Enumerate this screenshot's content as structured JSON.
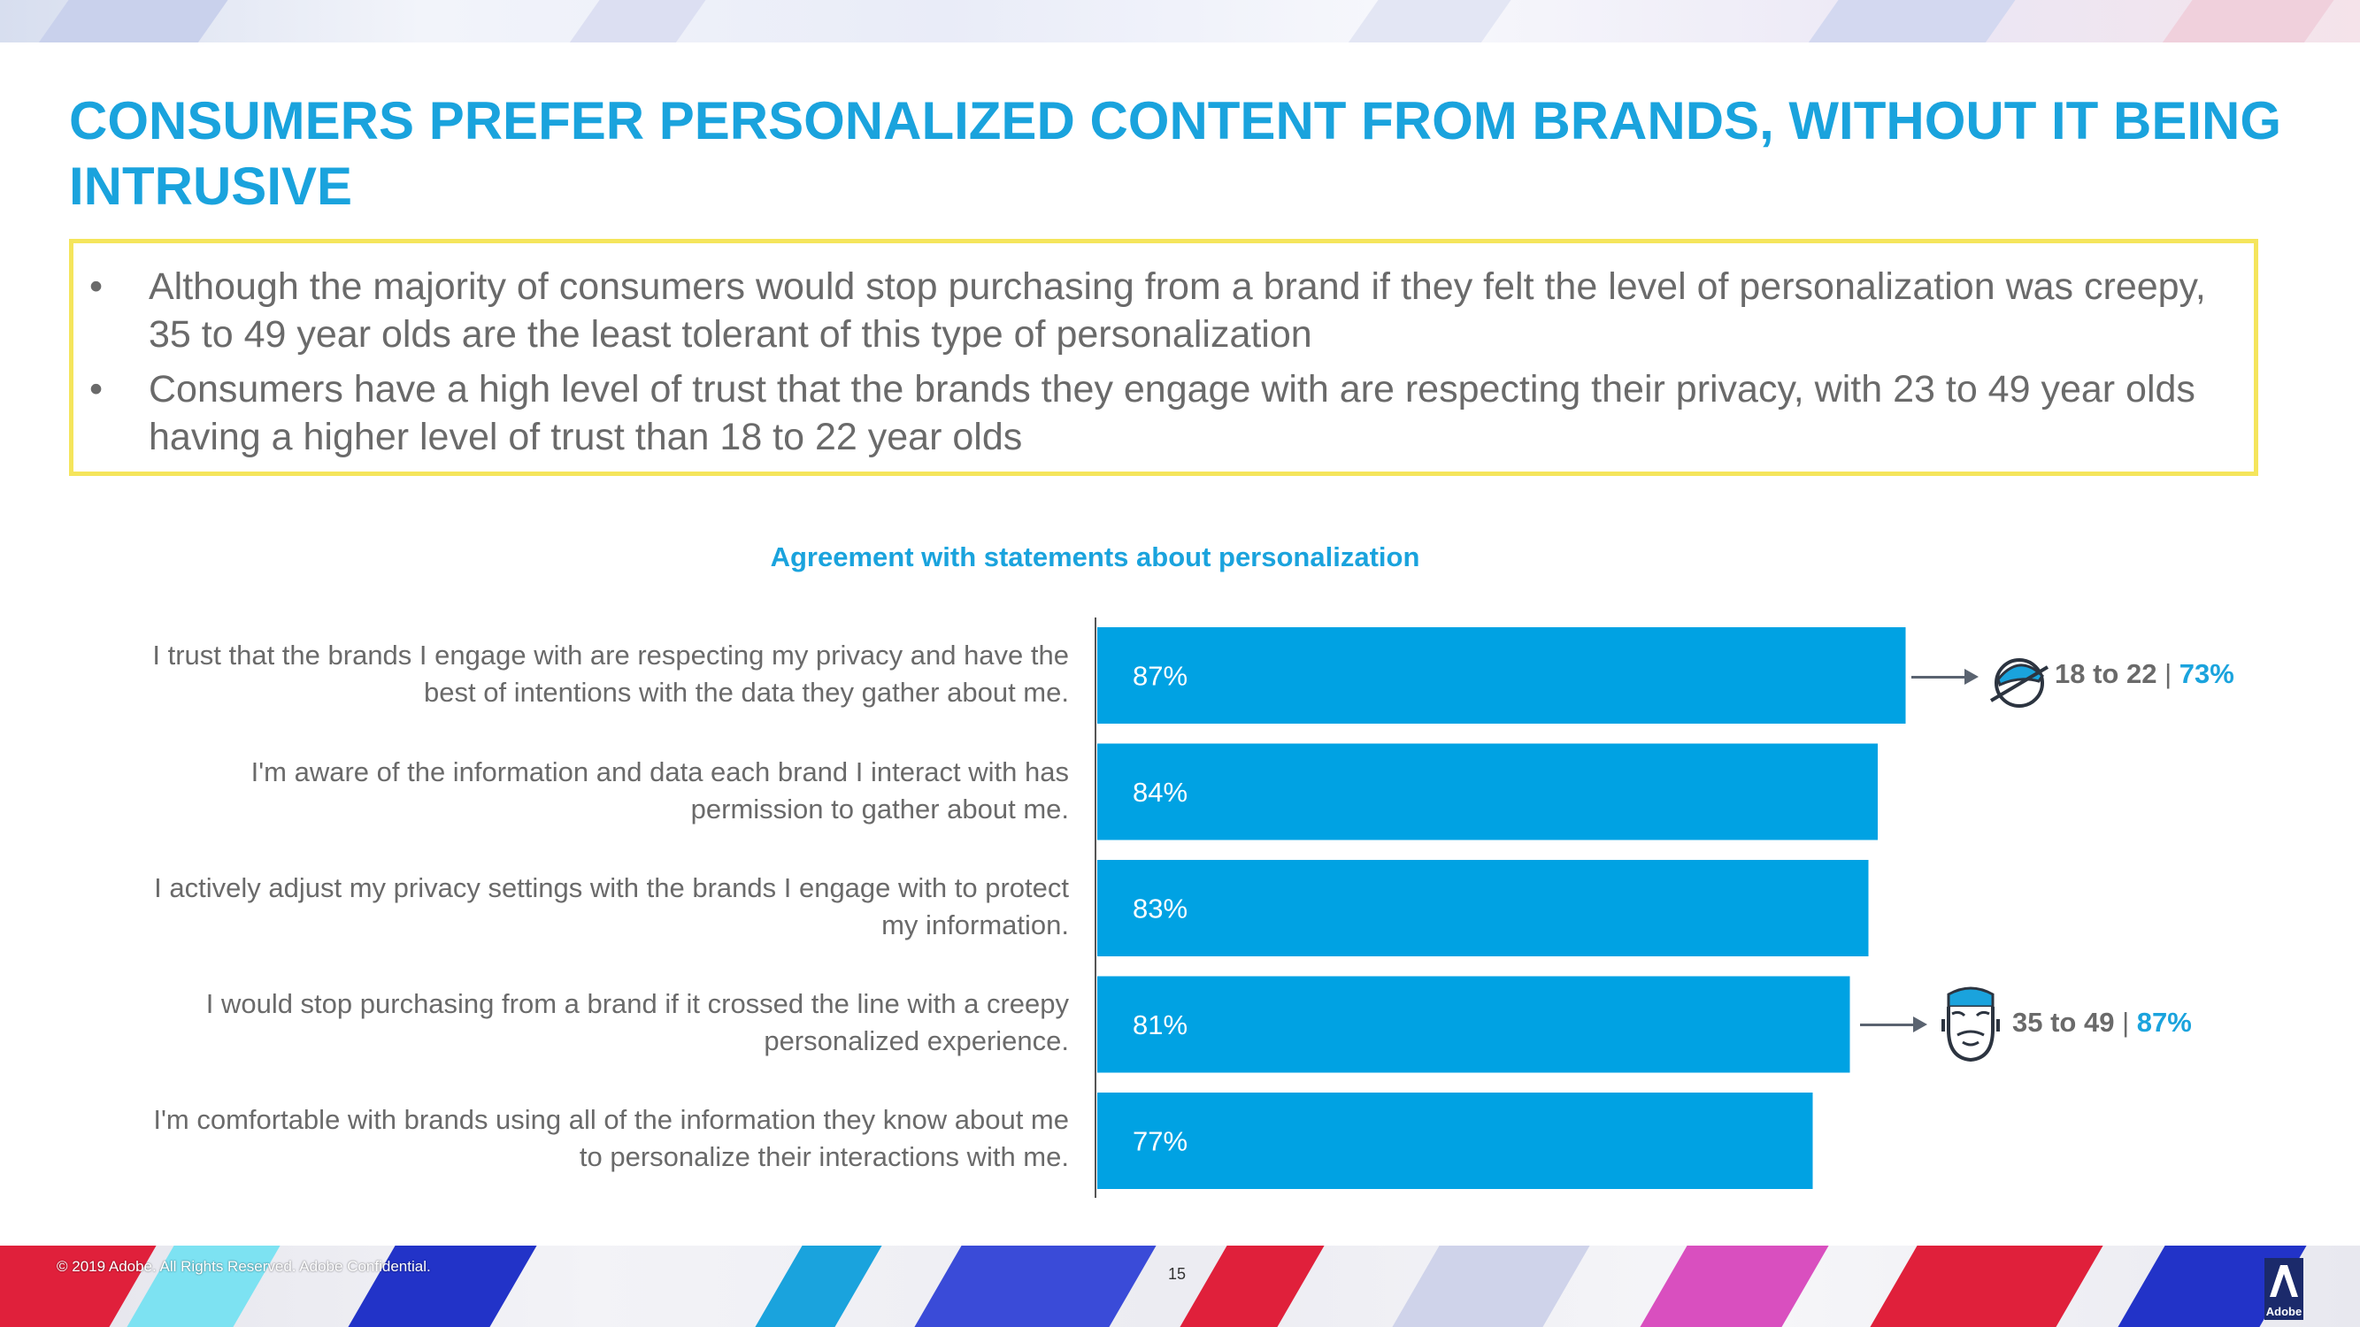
{
  "title": "CONSUMERS PREFER PERSONALIZED CONTENT FROM BRANDS, WITHOUT IT BEING INTRUSIVE",
  "callout": {
    "bullet_symbol": "•",
    "bullets": [
      "Although the majority of consumers would stop purchasing from a brand if they felt the level of personalization was creepy, 35 to 49 year olds are the least tolerant of this type of personalization",
      "Consumers have a high level of trust that the brands they engage with are respecting their privacy, with 23 to 49 year olds having a higher level of trust than 18 to 22 year olds"
    ]
  },
  "chart_data": {
    "type": "bar",
    "orientation": "horizontal",
    "title": "Agreement with statements about personalization",
    "categories": [
      "I trust that the brands I engage with are respecting my privacy and have the best of intentions with the data they gather about me.",
      "I'm aware of the information and data each brand I interact with has permission to gather about me.",
      "I actively adjust my privacy settings with the brands I engage with to protect my information.",
      "I would stop purchasing from a brand if it crossed the line with a creepy personalized experience.",
      "I'm comfortable with brands using all of the information they know about me to personalize their interactions with me."
    ],
    "values": [
      87,
      84,
      83,
      81,
      77
    ],
    "value_labels": [
      "87%",
      "84%",
      "83%",
      "81%",
      "77%"
    ],
    "xlim": [
      0,
      100
    ],
    "bar_color": "#00a2e3",
    "grid": false,
    "annotations": [
      {
        "category_index": 0,
        "segment": "18 to 22",
        "separator": "|",
        "value": 73,
        "value_label": "73%",
        "icon": "persona-young-cap-icon"
      },
      {
        "category_index": 3,
        "segment": "35 to 49",
        "separator": "|",
        "value": 87,
        "value_label": "87%",
        "icon": "persona-bearded-man-icon"
      }
    ]
  },
  "footer": {
    "copyright": "© 2019 Adobe. All Rights Reserved. Adobe Confidential.",
    "page_number": "15",
    "logo_text": "Adobe"
  },
  "colors": {
    "accent": "#1aa3dd",
    "bar": "#00a2e3",
    "callout_border": "#f5e55c",
    "body_text": "#6a6a6a"
  }
}
